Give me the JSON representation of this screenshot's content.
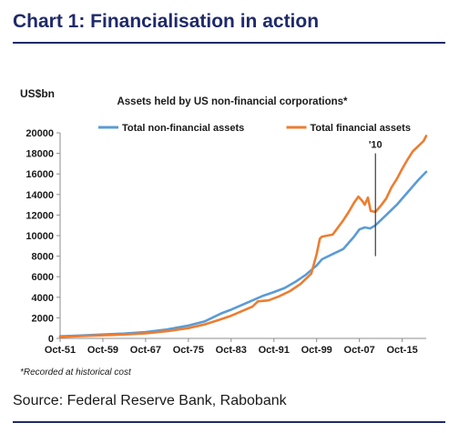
{
  "header": {
    "title": "Chart 1: Financialisation in action"
  },
  "footer": {
    "source": "Source: Federal Reserve Bank, Rabobank"
  },
  "chart_data": {
    "type": "line",
    "title": "Assets held by US non-financial  corporations*",
    "ylabel": "US$bn",
    "footnote": "*Recorded at historical cost",
    "legend_position": "top",
    "x_ticks": [
      "Oct-51",
      "Oct-59",
      "Oct-67",
      "Oct-75",
      "Oct-83",
      "Oct-91",
      "Oct-99",
      "Oct-07",
      "Oct-15"
    ],
    "x_tick_years": [
      1951,
      1959,
      1967,
      1975,
      1983,
      1991,
      1999,
      2007,
      2015
    ],
    "xlim": [
      1951,
      2019.5
    ],
    "ylim": [
      0,
      20000
    ],
    "y_ticks": [
      0,
      2000,
      4000,
      6000,
      8000,
      10000,
      12000,
      14000,
      16000,
      18000,
      20000
    ],
    "grid": false,
    "annotation": {
      "label": "'10",
      "x": 2010,
      "y_from": 8000,
      "y_to": 18000
    },
    "series": [
      {
        "name": "Total non-financial assets",
        "color": "#5b9bd5",
        "points": [
          [
            1951,
            200
          ],
          [
            1955,
            280
          ],
          [
            1959,
            380
          ],
          [
            1963,
            470
          ],
          [
            1967,
            620
          ],
          [
            1971,
            870
          ],
          [
            1975,
            1250
          ],
          [
            1978,
            1650
          ],
          [
            1981,
            2400
          ],
          [
            1983,
            2800
          ],
          [
            1985,
            3250
          ],
          [
            1987,
            3700
          ],
          [
            1989,
            4150
          ],
          [
            1991,
            4500
          ],
          [
            1993,
            4900
          ],
          [
            1995,
            5500
          ],
          [
            1997,
            6200
          ],
          [
            1999,
            7100
          ],
          [
            2000,
            7700
          ],
          [
            2002,
            8200
          ],
          [
            2004,
            8700
          ],
          [
            2005,
            9300
          ],
          [
            2006,
            9900
          ],
          [
            2007,
            10600
          ],
          [
            2008,
            10800
          ],
          [
            2009,
            10700
          ],
          [
            2010,
            11000
          ],
          [
            2012,
            12000
          ],
          [
            2014,
            13000
          ],
          [
            2016,
            14200
          ],
          [
            2018,
            15400
          ],
          [
            2019.5,
            16200
          ]
        ]
      },
      {
        "name": "Total financial assets",
        "color": "#ed7d31",
        "points": [
          [
            1951,
            150
          ],
          [
            1955,
            220
          ],
          [
            1959,
            300
          ],
          [
            1963,
            380
          ],
          [
            1967,
            500
          ],
          [
            1971,
            700
          ],
          [
            1975,
            1000
          ],
          [
            1978,
            1350
          ],
          [
            1981,
            1850
          ],
          [
            1983,
            2200
          ],
          [
            1985,
            2650
          ],
          [
            1987,
            3100
          ],
          [
            1988,
            3600
          ],
          [
            1990,
            3700
          ],
          [
            1992,
            4100
          ],
          [
            1994,
            4600
          ],
          [
            1996,
            5300
          ],
          [
            1998,
            6300
          ],
          [
            1999,
            8200
          ],
          [
            1999.6,
            9700
          ],
          [
            2000,
            9900
          ],
          [
            2002,
            10100
          ],
          [
            2004,
            11500
          ],
          [
            2005,
            12300
          ],
          [
            2006,
            13200
          ],
          [
            2006.8,
            13800
          ],
          [
            2007.5,
            13400
          ],
          [
            2008,
            13000
          ],
          [
            2008.6,
            13700
          ],
          [
            2009.1,
            12400
          ],
          [
            2010,
            12300
          ],
          [
            2011,
            12900
          ],
          [
            2012,
            13600
          ],
          [
            2013,
            14700
          ],
          [
            2014,
            15500
          ],
          [
            2015,
            16500
          ],
          [
            2016,
            17400
          ],
          [
            2017,
            18200
          ],
          [
            2018,
            18700
          ],
          [
            2019,
            19200
          ],
          [
            2019.5,
            19700
          ]
        ]
      }
    ]
  }
}
